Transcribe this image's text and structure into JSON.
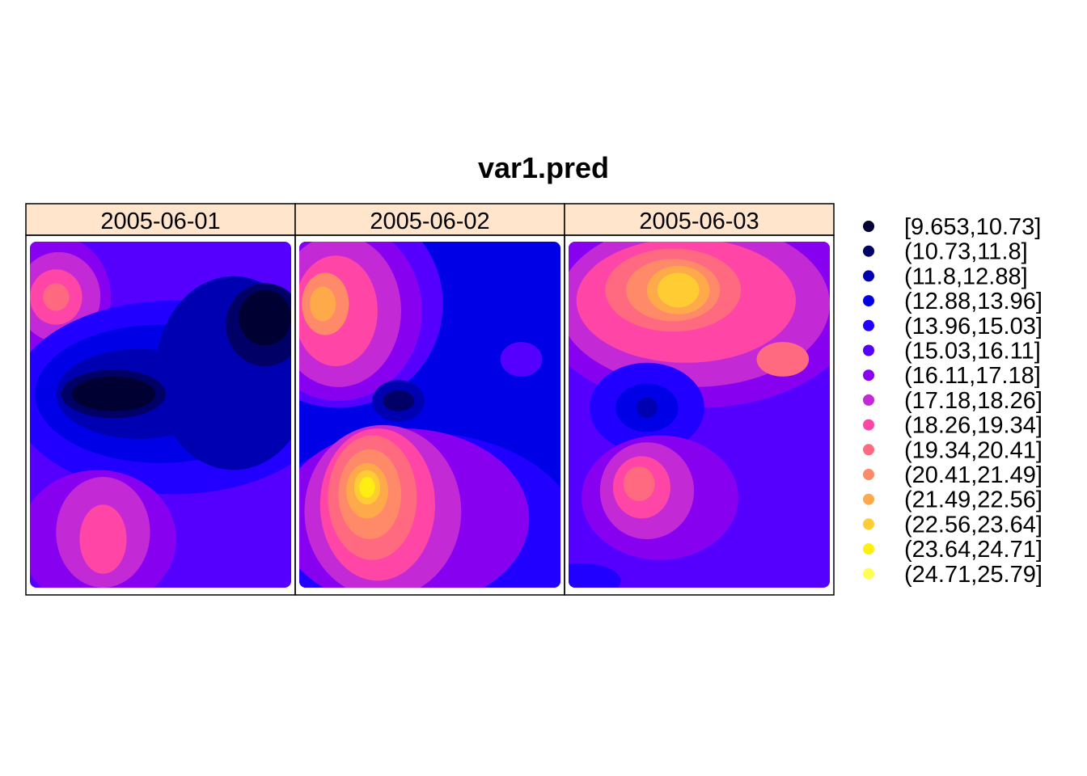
{
  "chart_data": {
    "type": "heatmap",
    "title": "var1.pred",
    "panels": [
      {
        "label": "2005-06-01",
        "background_class": 5,
        "blobs": [
          {
            "x": 0.09,
            "y": 0.16,
            "rx": 0.22,
            "ry": 0.18,
            "cls": 6
          },
          {
            "x": 0.11,
            "y": 0.16,
            "rx": 0.16,
            "ry": 0.13,
            "cls": 7
          },
          {
            "x": 0.1,
            "y": 0.16,
            "rx": 0.1,
            "ry": 0.08,
            "cls": 8
          },
          {
            "x": 0.1,
            "y": 0.16,
            "rx": 0.05,
            "ry": 0.04,
            "cls": 9
          },
          {
            "x": 0.55,
            "y": 0.45,
            "rx": 0.62,
            "ry": 0.28,
            "cls": 4
          },
          {
            "x": 0.5,
            "y": 0.44,
            "rx": 0.48,
            "ry": 0.2,
            "cls": 3
          },
          {
            "x": 0.78,
            "y": 0.38,
            "rx": 0.3,
            "ry": 0.28,
            "cls": 2
          },
          {
            "x": 0.42,
            "y": 0.44,
            "rx": 0.32,
            "ry": 0.13,
            "cls": 2
          },
          {
            "x": 0.9,
            "y": 0.24,
            "rx": 0.15,
            "ry": 0.12,
            "cls": 1
          },
          {
            "x": 0.32,
            "y": 0.44,
            "rx": 0.2,
            "ry": 0.07,
            "cls": 1
          },
          {
            "x": 0.9,
            "y": 0.22,
            "rx": 0.1,
            "ry": 0.08,
            "cls": 0
          },
          {
            "x": 0.32,
            "y": 0.44,
            "rx": 0.16,
            "ry": 0.05,
            "cls": 0
          },
          {
            "x": 0.26,
            "y": 0.86,
            "rx": 0.3,
            "ry": 0.2,
            "cls": 6
          },
          {
            "x": 0.28,
            "y": 0.84,
            "rx": 0.18,
            "ry": 0.16,
            "cls": 7
          },
          {
            "x": 0.28,
            "y": 0.86,
            "rx": 0.09,
            "ry": 0.1,
            "cls": 8
          }
        ]
      },
      {
        "label": "2005-06-02",
        "background_class": 3,
        "blobs": [
          {
            "x": 0.15,
            "y": 0.18,
            "rx": 0.4,
            "ry": 0.3,
            "cls": 5
          },
          {
            "x": 0.15,
            "y": 0.2,
            "rx": 0.32,
            "ry": 0.26,
            "cls": 6
          },
          {
            "x": 0.15,
            "y": 0.2,
            "rx": 0.24,
            "ry": 0.22,
            "cls": 7
          },
          {
            "x": 0.14,
            "y": 0.2,
            "rx": 0.16,
            "ry": 0.16,
            "cls": 8
          },
          {
            "x": 0.1,
            "y": 0.18,
            "rx": 0.09,
            "ry": 0.09,
            "cls": 10
          },
          {
            "x": 0.09,
            "y": 0.18,
            "rx": 0.05,
            "ry": 0.05,
            "cls": 11
          },
          {
            "x": 0.38,
            "y": 0.46,
            "rx": 0.1,
            "ry": 0.06,
            "cls": 2
          },
          {
            "x": 0.38,
            "y": 0.46,
            "rx": 0.06,
            "ry": 0.03,
            "cls": 1
          },
          {
            "x": 0.85,
            "y": 0.34,
            "rx": 0.08,
            "ry": 0.05,
            "cls": 5
          },
          {
            "x": 0.45,
            "y": 0.85,
            "rx": 0.62,
            "ry": 0.3,
            "cls": 4
          },
          {
            "x": 0.4,
            "y": 0.8,
            "rx": 0.48,
            "ry": 0.26,
            "cls": 6
          },
          {
            "x": 0.32,
            "y": 0.78,
            "rx": 0.3,
            "ry": 0.25,
            "cls": 7
          },
          {
            "x": 0.3,
            "y": 0.76,
            "rx": 0.22,
            "ry": 0.22,
            "cls": 8
          },
          {
            "x": 0.28,
            "y": 0.74,
            "rx": 0.17,
            "ry": 0.18,
            "cls": 9
          },
          {
            "x": 0.27,
            "y": 0.73,
            "rx": 0.12,
            "ry": 0.13,
            "cls": 10
          },
          {
            "x": 0.26,
            "y": 0.72,
            "rx": 0.08,
            "ry": 0.08,
            "cls": 11
          },
          {
            "x": 0.26,
            "y": 0.71,
            "rx": 0.05,
            "ry": 0.05,
            "cls": 12
          },
          {
            "x": 0.26,
            "y": 0.71,
            "rx": 0.03,
            "ry": 0.03,
            "cls": 13
          }
        ]
      },
      {
        "label": "2005-06-03",
        "background_class": 5,
        "blobs": [
          {
            "x": 0.5,
            "y": 0.18,
            "rx": 0.62,
            "ry": 0.3,
            "cls": 6
          },
          {
            "x": 0.48,
            "y": 0.18,
            "rx": 0.52,
            "ry": 0.24,
            "cls": 7
          },
          {
            "x": 0.45,
            "y": 0.17,
            "rx": 0.42,
            "ry": 0.18,
            "cls": 8
          },
          {
            "x": 0.4,
            "y": 0.14,
            "rx": 0.26,
            "ry": 0.12,
            "cls": 9
          },
          {
            "x": 0.4,
            "y": 0.14,
            "rx": 0.18,
            "ry": 0.09,
            "cls": 10
          },
          {
            "x": 0.42,
            "y": 0.14,
            "rx": 0.12,
            "ry": 0.07,
            "cls": 11
          },
          {
            "x": 0.42,
            "y": 0.14,
            "rx": 0.08,
            "ry": 0.05,
            "cls": 12
          },
          {
            "x": 0.82,
            "y": 0.34,
            "rx": 0.1,
            "ry": 0.05,
            "cls": 9
          },
          {
            "x": 0.3,
            "y": 0.48,
            "rx": 0.22,
            "ry": 0.13,
            "cls": 4
          },
          {
            "x": 0.3,
            "y": 0.48,
            "rx": 0.12,
            "ry": 0.07,
            "cls": 3
          },
          {
            "x": 0.3,
            "y": 0.48,
            "rx": 0.04,
            "ry": 0.03,
            "cls": 2
          },
          {
            "x": 0.35,
            "y": 0.74,
            "rx": 0.3,
            "ry": 0.18,
            "cls": 6
          },
          {
            "x": 0.3,
            "y": 0.72,
            "rx": 0.18,
            "ry": 0.14,
            "cls": 7
          },
          {
            "x": 0.28,
            "y": 0.71,
            "rx": 0.11,
            "ry": 0.09,
            "cls": 8
          },
          {
            "x": 0.27,
            "y": 0.7,
            "rx": 0.06,
            "ry": 0.05,
            "cls": 9
          },
          {
            "x": 0.05,
            "y": 0.98,
            "rx": 0.15,
            "ry": 0.05,
            "cls": 4
          }
        ]
      }
    ],
    "legend": {
      "placement": "right",
      "classes": [
        {
          "label": "[9.653,10.73]",
          "range": [
            9.653,
            10.73
          ],
          "color": "#000033"
        },
        {
          "label": "(10.73,11.8]",
          "range": [
            10.73,
            11.8
          ],
          "color": "#000066"
        },
        {
          "label": "(11.8,12.88]",
          "range": [
            11.8,
            12.88
          ],
          "color": "#0000b3"
        },
        {
          "label": "(12.88,13.96]",
          "range": [
            12.88,
            13.96
          ],
          "color": "#0000e6"
        },
        {
          "label": "(13.96,15.03]",
          "range": [
            13.96,
            15.03
          ],
          "color": "#2200ff"
        },
        {
          "label": "(15.03,16.11]",
          "range": [
            15.03,
            16.11
          ],
          "color": "#5500ff"
        },
        {
          "label": "(16.11,17.18]",
          "range": [
            16.11,
            17.18
          ],
          "color": "#8800f0"
        },
        {
          "label": "(17.18,18.26]",
          "range": [
            17.18,
            18.26
          ],
          "color": "#c32ad6"
        },
        {
          "label": "(18.26,19.34]",
          "range": [
            18.26,
            19.34
          ],
          "color": "#ff45a6"
        },
        {
          "label": "(19.34,20.41]",
          "range": [
            19.34,
            20.41
          ],
          "color": "#ff6a80"
        },
        {
          "label": "(20.41,21.49]",
          "range": [
            20.41,
            21.49
          ],
          "color": "#ff8a6a"
        },
        {
          "label": "(21.49,22.56]",
          "range": [
            21.49,
            22.56
          ],
          "color": "#ffaa4a"
        },
        {
          "label": "(22.56,23.64]",
          "range": [
            22.56,
            23.64
          ],
          "color": "#ffcc33"
        },
        {
          "label": "(23.64,24.71]",
          "range": [
            23.64,
            24.71
          ],
          "color": "#ffee11"
        },
        {
          "label": "(24.71,25.79]",
          "range": [
            24.71,
            25.79
          ],
          "color": "#ffff55"
        }
      ]
    },
    "strip_color": "#ffe5cc",
    "grid": false
  }
}
